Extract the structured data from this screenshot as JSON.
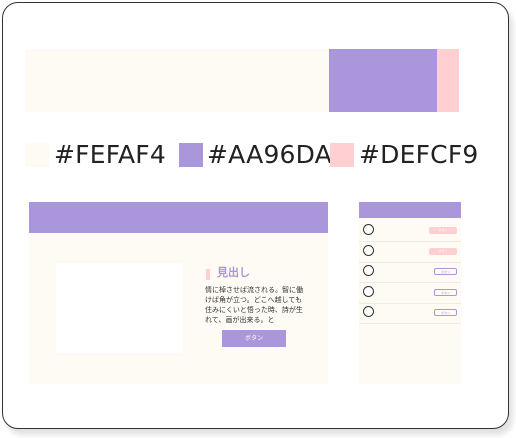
{
  "colors": {
    "base": "#FEFAF4",
    "accent": "#AA96DA",
    "sub": "#DEFCF9",
    "sub_display": "#FFCFD2"
  },
  "swatches": [
    {
      "label": "#FEFAF4",
      "color": "#FEFAF4"
    },
    {
      "label": "#AA96DA",
      "color": "#AA96DA"
    },
    {
      "label": "#DEFCF9",
      "color": "#FFCFD2"
    }
  ],
  "strip": {
    "segments": [
      {
        "color": "#FEFAF4",
        "share": 0.7
      },
      {
        "color": "#AA96DA",
        "share": 0.25
      },
      {
        "color": "#FFCFD2",
        "share": 0.05
      }
    ]
  },
  "mockup_web": {
    "heading": "見出し",
    "body": "情に棹させば流される。智に働けば角が立つ。どこへ越しても住みにくいと悟った時、詩が生れて、画が出来る。と",
    "button_label": "ボタン"
  },
  "mockup_phone": {
    "rows": [
      {
        "tag": "ボタン",
        "style": "filled"
      },
      {
        "tag": "ボタン",
        "style": "filled"
      },
      {
        "tag": "ボタン",
        "style": "outline"
      },
      {
        "tag": "ボタン",
        "style": "outline"
      },
      {
        "tag": "ボタン",
        "style": "outline"
      }
    ]
  }
}
